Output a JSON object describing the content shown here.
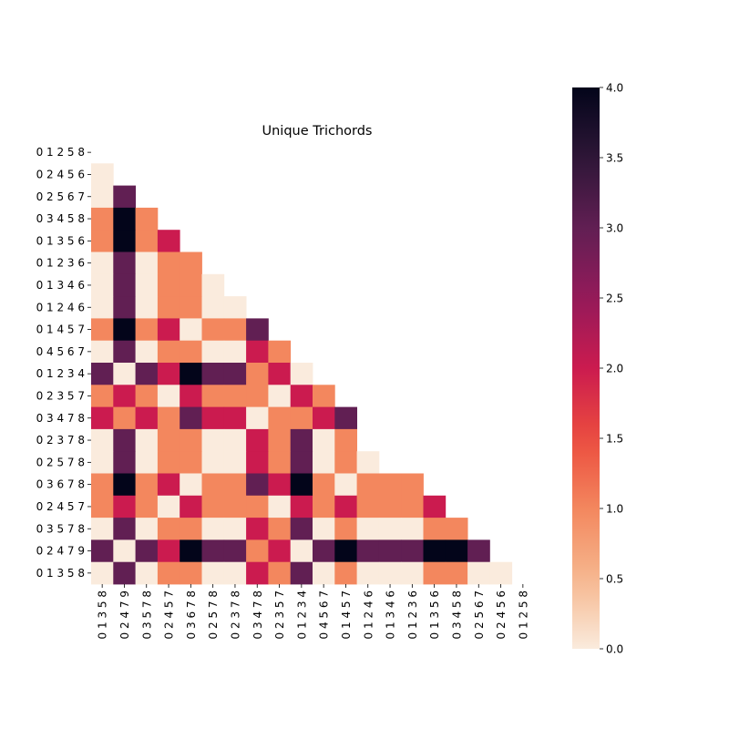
{
  "chart_data": {
    "type": "heatmap",
    "title": "Unique Trichords",
    "row_labels": [
      "0 1 2 5 8",
      "0 2 4 5 6",
      "0 2 5 6 7",
      "0 3 4 5 8",
      "0 1 3 5 6",
      "0 1 2 3 6",
      "0 1 3 4 6",
      "0 1 2 4 6",
      "0 1 4 5 7",
      "0 4 5 6 7",
      "0 1 2 3 4",
      "0 2 3 5 7",
      "0 3 4 7 8",
      "0 2 3 7 8",
      "0 2 5 7 8",
      "0 3 6 7 8",
      "0 2 4 5 7",
      "0 3 5 7 8",
      "0 2 4 7 9",
      "0 1 3 5 8"
    ],
    "col_labels": [
      "0 1 3 5 8",
      "0 2 4 7 9",
      "0 3 5 7 8",
      "0 2 4 5 7",
      "0 3 6 7 8",
      "0 2 5 7 8",
      "0 2 3 7 8",
      "0 3 4 7 8",
      "0 2 3 5 7",
      "0 1 2 3 4",
      "0 4 5 6 7",
      "0 1 4 5 7",
      "0 1 2 4 6",
      "0 1 3 4 6",
      "0 1 2 3 6",
      "0 1 3 5 6",
      "0 3 4 5 8",
      "0 2 5 6 7",
      "0 2 4 5 6",
      "0 1 2 5 8"
    ],
    "matrix": [
      [],
      [
        0
      ],
      [
        0,
        3
      ],
      [
        1,
        4,
        1
      ],
      [
        1,
        4,
        1,
        2
      ],
      [
        0,
        3,
        0,
        1,
        1
      ],
      [
        0,
        3,
        0,
        1,
        1,
        0
      ],
      [
        0,
        3,
        0,
        1,
        1,
        0,
        0
      ],
      [
        1,
        4,
        1,
        2,
        0,
        1,
        1,
        3
      ],
      [
        0,
        3,
        0,
        1,
        1,
        0,
        0,
        2,
        1
      ],
      [
        3,
        0,
        3,
        2,
        4,
        3,
        3,
        1,
        2,
        0
      ],
      [
        1,
        2,
        1,
        0,
        2,
        1,
        1,
        1,
        0,
        2,
        1
      ],
      [
        2,
        1,
        2,
        1,
        3,
        2,
        2,
        0,
        1,
        1,
        2,
        3
      ],
      [
        0,
        3,
        0,
        1,
        1,
        0,
        0,
        2,
        1,
        3,
        0,
        1
      ],
      [
        0,
        3,
        0,
        1,
        1,
        0,
        0,
        2,
        1,
        3,
        0,
        1,
        0
      ],
      [
        1,
        4,
        1,
        2,
        0,
        1,
        1,
        3,
        2,
        4,
        1,
        0,
        1,
        1,
        1
      ],
      [
        1,
        2,
        1,
        0,
        2,
        1,
        1,
        1,
        0,
        2,
        1,
        2,
        1,
        1,
        1,
        2
      ],
      [
        0,
        3,
        0,
        1,
        1,
        0,
        0,
        2,
        1,
        3,
        0,
        1,
        0,
        0,
        0,
        1,
        1
      ],
      [
        3,
        0,
        3,
        2,
        4,
        3,
        3,
        1,
        2,
        0,
        3,
        4,
        3,
        3,
        3,
        4,
        4,
        3
      ],
      [
        0,
        3,
        0,
        1,
        1,
        0,
        0,
        2,
        1,
        3,
        0,
        1,
        0,
        0,
        0,
        1,
        1,
        0,
        0
      ]
    ],
    "colorbar": {
      "min": 0.0,
      "max": 4.0,
      "ticks": [
        "0.0",
        "0.5",
        "1.0",
        "1.5",
        "2.0",
        "2.5",
        "3.0",
        "3.5",
        "4.0"
      ]
    },
    "colors": {
      "0": "#faebdd",
      "1": "#f3875e",
      "2": "#cb1b4f",
      "3": "#611f53",
      "4": "#03051a"
    },
    "grid": false
  }
}
